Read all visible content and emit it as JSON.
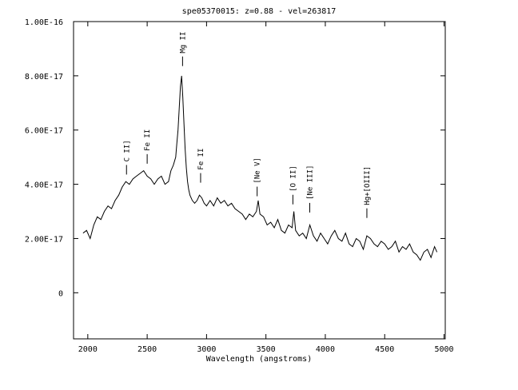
{
  "chart_data": {
    "type": "line",
    "title": "spe05370015: z=0.88 - vel=263817",
    "xlabel": "Wavelength (angstroms)",
    "ylabel": "",
    "xlim": [
      1880,
      5010
    ],
    "ylim": [
      -1.7e-17,
      1e-16
    ],
    "x_ticks": [
      2000,
      2500,
      3000,
      3500,
      4000,
      4500,
      5000
    ],
    "x_tick_labels": [
      "2000",
      "2500",
      "3000",
      "3500",
      "4000",
      "4500",
      "5000"
    ],
    "y_ticks": [
      0,
      2e-17,
      4e-17,
      6e-17,
      8e-17,
      1e-16
    ],
    "y_tick_labels": [
      "0",
      "2.00E-17",
      "4.00E-17",
      "6.00E-17",
      "8.00E-17",
      "1.00E-16"
    ],
    "grid": false,
    "legend": "none",
    "line_color": "#000000",
    "series": [
      {
        "x": [
          1960,
          1990,
          2020,
          2050,
          2080,
          2110,
          2140,
          2170,
          2200,
          2230,
          2260,
          2290,
          2320,
          2350,
          2380,
          2410,
          2440,
          2470,
          2500,
          2530,
          2560,
          2590,
          2620,
          2650,
          2680,
          2700,
          2720,
          2740,
          2750,
          2760,
          2770,
          2780,
          2790,
          2800,
          2810,
          2820,
          2830,
          2840,
          2850,
          2860,
          2870,
          2880,
          2900,
          2920,
          2940,
          2960,
          2980,
          3000,
          3030,
          3060,
          3090,
          3120,
          3150,
          3180,
          3210,
          3240,
          3270,
          3300,
          3330,
          3360,
          3390,
          3420,
          3435,
          3450,
          3480,
          3510,
          3540,
          3570,
          3600,
          3630,
          3660,
          3690,
          3720,
          3735,
          3750,
          3780,
          3810,
          3840,
          3870,
          3900,
          3930,
          3960,
          3990,
          4020,
          4050,
          4080,
          4110,
          4140,
          4170,
          4200,
          4230,
          4260,
          4290,
          4320,
          4350,
          4380,
          4410,
          4440,
          4470,
          4500,
          4530,
          4560,
          4590,
          4620,
          4650,
          4680,
          4710,
          4740,
          4770,
          4800,
          4830,
          4860,
          4890,
          4920,
          4940
        ],
        "values": [
          2.2e-17,
          2.3e-17,
          2e-17,
          2.5e-17,
          2.8e-17,
          2.7e-17,
          3e-17,
          3.2e-17,
          3.1e-17,
          3.4e-17,
          3.6e-17,
          3.9e-17,
          4.1e-17,
          4e-17,
          4.2e-17,
          4.3e-17,
          4.4e-17,
          4.5e-17,
          4.3e-17,
          4.2e-17,
          4e-17,
          4.2e-17,
          4.3e-17,
          4e-17,
          4.1e-17,
          4.5e-17,
          4.7e-17,
          5e-17,
          5.5e-17,
          6e-17,
          6.8e-17,
          7.6e-17,
          8e-17,
          7.2e-17,
          6.2e-17,
          5.3e-17,
          4.6e-17,
          4.1e-17,
          3.8e-17,
          3.6e-17,
          3.5e-17,
          3.4e-17,
          3.3e-17,
          3.4e-17,
          3.6e-17,
          3.5e-17,
          3.3e-17,
          3.2e-17,
          3.4e-17,
          3.2e-17,
          3.5e-17,
          3.3e-17,
          3.4e-17,
          3.2e-17,
          3.3e-17,
          3.1e-17,
          3e-17,
          2.9e-17,
          2.7e-17,
          2.9e-17,
          2.8e-17,
          3e-17,
          3.4e-17,
          2.9e-17,
          2.8e-17,
          2.5e-17,
          2.6e-17,
          2.4e-17,
          2.7e-17,
          2.3e-17,
          2.2e-17,
          2.5e-17,
          2.4e-17,
          3e-17,
          2.3e-17,
          2.1e-17,
          2.2e-17,
          2e-17,
          2.5e-17,
          2.1e-17,
          1.9e-17,
          2.2e-17,
          2e-17,
          1.8e-17,
          2.1e-17,
          2.3e-17,
          2e-17,
          1.9e-17,
          2.2e-17,
          1.8e-17,
          1.7e-17,
          2e-17,
          1.9e-17,
          1.6e-17,
          2.1e-17,
          2e-17,
          1.8e-17,
          1.7e-17,
          1.9e-17,
          1.8e-17,
          1.6e-17,
          1.7e-17,
          1.9e-17,
          1.5e-17,
          1.7e-17,
          1.6e-17,
          1.8e-17,
          1.5e-17,
          1.4e-17,
          1.2e-17,
          1.5e-17,
          1.6e-17,
          1.3e-17,
          1.7e-17,
          1.5e-17
        ]
      }
    ],
    "annotations": [
      {
        "text": "C II]",
        "x": 2326,
        "flux": 4.3e-17
      },
      {
        "text": "Fe II",
        "x": 2500,
        "flux": 4.7e-17
      },
      {
        "text": "Mg II",
        "x": 2798,
        "flux": 8.3e-17
      },
      {
        "text": "Fe II",
        "x": 2950,
        "flux": 4e-17
      },
      {
        "text": "[Ne V]",
        "x": 3426,
        "flux": 3.5e-17
      },
      {
        "text": "[O II]",
        "x": 3727,
        "flux": 3.2e-17
      },
      {
        "text": "[Ne III]",
        "x": 3869,
        "flux": 2.9e-17
      },
      {
        "text": "Hg+[OIII]",
        "x": 4350,
        "flux": 2.7e-17
      }
    ]
  }
}
